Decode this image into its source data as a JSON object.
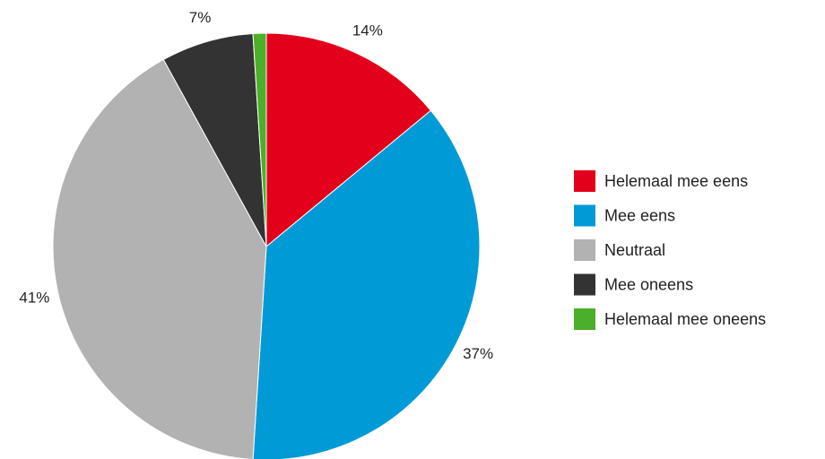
{
  "chart_data": {
    "type": "pie",
    "categories": [
      "Helemaal mee eens",
      "Mee eens",
      "Neutraal",
      "Mee oneens",
      "Helemaal mee oneens"
    ],
    "values": [
      14,
      37,
      41,
      7,
      1
    ],
    "value_labels": [
      "14%",
      "37%",
      "41%",
      "7%",
      null
    ],
    "colors": [
      "#e2001a",
      "#009ad7",
      "#b2b2b2",
      "#333333",
      "#4caf2a"
    ],
    "legend": "right"
  }
}
